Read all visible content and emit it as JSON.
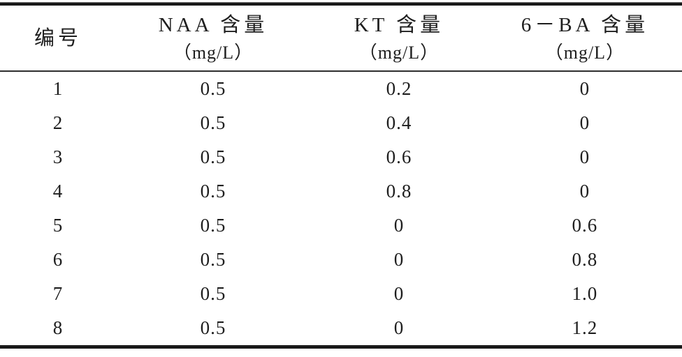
{
  "page": {
    "background": "#ffffff",
    "text_color": "#1e1e1e",
    "rule_color": "#191919"
  },
  "table": {
    "columns": [
      {
        "key": "id",
        "title": "编号",
        "unit": ""
      },
      {
        "key": "naa",
        "title": "NAA 含量",
        "unit": "（mg/L）"
      },
      {
        "key": "kt",
        "title": "KT 含量",
        "unit": "（mg/L）"
      },
      {
        "key": "ba",
        "title": "6－BA 含量",
        "unit": "（mg/L）"
      }
    ],
    "rows": [
      [
        "1",
        "0.5",
        "0.2",
        "0"
      ],
      [
        "2",
        "0.5",
        "0.4",
        "0"
      ],
      [
        "3",
        "0.5",
        "0.6",
        "0"
      ],
      [
        "4",
        "0.5",
        "0.8",
        "0"
      ],
      [
        "5",
        "0.5",
        "0",
        "0.6"
      ],
      [
        "6",
        "0.5",
        "0",
        "0.8"
      ],
      [
        "7",
        "0.5",
        "0",
        "1.0"
      ],
      [
        "8",
        "0.5",
        "0",
        "1.2"
      ]
    ]
  },
  "chart_data": {
    "type": "table",
    "title": "",
    "columns": [
      "编号",
      "NAA 含量（mg/L）",
      "KT 含量（mg/L）",
      "6－BA 含量（mg/L）"
    ],
    "rows": [
      [
        "1",
        "0.5",
        "0.2",
        "0"
      ],
      [
        "2",
        "0.5",
        "0.4",
        "0"
      ],
      [
        "3",
        "0.5",
        "0.6",
        "0"
      ],
      [
        "4",
        "0.5",
        "0.8",
        "0"
      ],
      [
        "5",
        "0.5",
        "0",
        "0.6"
      ],
      [
        "6",
        "0.5",
        "0",
        "0.8"
      ],
      [
        "7",
        "0.5",
        "0",
        "1.0"
      ],
      [
        "8",
        "0.5",
        "0",
        "1.2"
      ]
    ]
  }
}
